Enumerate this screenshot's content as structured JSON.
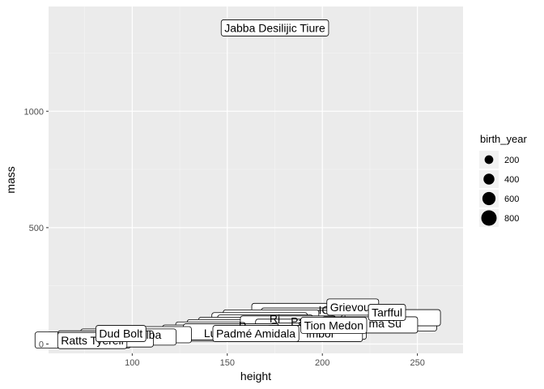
{
  "chart_data": {
    "type": "scatter",
    "title": "",
    "xlabel": "height",
    "ylabel": "mass",
    "xlim": [
      56,
      274
    ],
    "ylim": [
      -40,
      1450
    ],
    "xticks": [
      100,
      150,
      200,
      250
    ],
    "yticks": [
      0,
      500,
      1000
    ],
    "grid": true,
    "legend": {
      "title": "birth_year",
      "position": "right",
      "sizes": [
        200,
        400,
        600,
        800
      ]
    },
    "label_points": [
      {
        "label": "Jabba Desilijic Tiure",
        "x": 175,
        "y": 1358
      },
      {
        "label": "Grievous",
        "x": 216,
        "y": 159
      },
      {
        "label": "Tarfful",
        "x": 234,
        "y": 136
      },
      {
        "label": "Tion Medon",
        "x": 206,
        "y": 80
      },
      {
        "label": "Padmé Amidala",
        "x": 165,
        "y": 45
      },
      {
        "label": "Ratts Tyerell",
        "x": 79,
        "y": 15
      },
      {
        "label": "Dud Bolt",
        "x": 94,
        "y": 45
      }
    ],
    "overlap_points": [
      {
        "x": 188,
        "y": 140
      },
      {
        "x": 193,
        "y": 120
      },
      {
        "x": 180,
        "y": 110
      },
      {
        "x": 173,
        "y": 112
      },
      {
        "x": 167,
        "y": 100
      },
      {
        "x": 170,
        "y": 90
      },
      {
        "x": 160,
        "y": 80
      },
      {
        "x": 154,
        "y": 70
      },
      {
        "x": 148,
        "y": 60
      },
      {
        "x": 182,
        "y": 86
      },
      {
        "x": 190,
        "y": 72
      },
      {
        "x": 198,
        "y": 55
      },
      {
        "x": 235,
        "y": 90
      },
      {
        "x": 237,
        "y": 113
      },
      {
        "x": 225,
        "y": 82
      },
      {
        "x": 141,
        "y": 47
      },
      {
        "x": 152,
        "y": 52
      },
      {
        "x": 196,
        "y": 45
      },
      {
        "x": 106,
        "y": 40
      },
      {
        "x": 98,
        "y": 30
      },
      {
        "x": 74,
        "y": 17
      },
      {
        "x": 86,
        "y": 22
      }
    ],
    "overlap_fragments": [
      {
        "text": "Lu",
        "x": 141,
        "y": 47
      },
      {
        "text": "Ri",
        "x": 175,
        "y": 110
      },
      {
        "text": "P",
        "x": 158,
        "y": 78
      },
      {
        "text": "Pa",
        "x": 187,
        "y": 98
      },
      {
        "text": "ma Su",
        "x": 233,
        "y": 88
      },
      {
        "text": "imbor",
        "x": 199,
        "y": 45
      },
      {
        "text": "bulba",
        "x": 108,
        "y": 40
      },
      {
        "text": "B",
        "x": 73,
        "y": 17
      },
      {
        "text": "IC",
        "x": 201,
        "y": 146
      }
    ]
  }
}
